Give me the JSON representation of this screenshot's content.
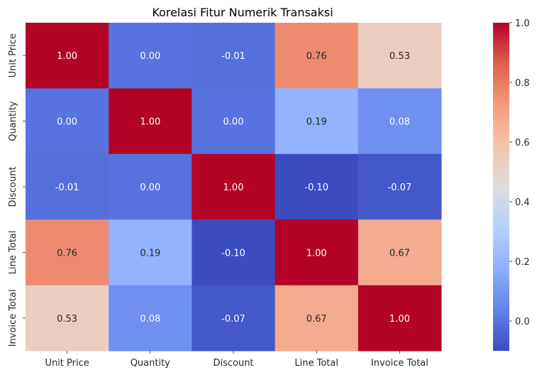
{
  "chart_data": {
    "type": "heatmap",
    "title": "Korelasi Fitur Numerik Transaksi",
    "x_labels": [
      "Unit Price",
      "Quantity",
      "Discount",
      "Line Total",
      "Invoice Total"
    ],
    "y_labels": [
      "Unit Price",
      "Quantity",
      "Discount",
      "Line Total",
      "Invoice Total"
    ],
    "values": [
      [
        1.0,
        0.0,
        -0.01,
        0.76,
        0.53
      ],
      [
        0.0,
        1.0,
        0.0,
        0.19,
        0.08
      ],
      [
        -0.01,
        0.0,
        1.0,
        -0.1,
        -0.07
      ],
      [
        0.76,
        0.19,
        -0.1,
        1.0,
        0.67
      ],
      [
        0.53,
        0.08,
        -0.07,
        0.67,
        1.0
      ]
    ],
    "value_format": "0.00",
    "colormap": "coolwarm",
    "vmin": -0.1,
    "vmax": 1.0,
    "colorbar_ticks": [
      0.0,
      0.2,
      0.4,
      0.6,
      0.8,
      1.0
    ],
    "colorbar_tick_labels": [
      "0.0",
      "0.2",
      "0.4",
      "0.6",
      "0.8",
      "1.0"
    ],
    "colorbar_position": "right"
  }
}
